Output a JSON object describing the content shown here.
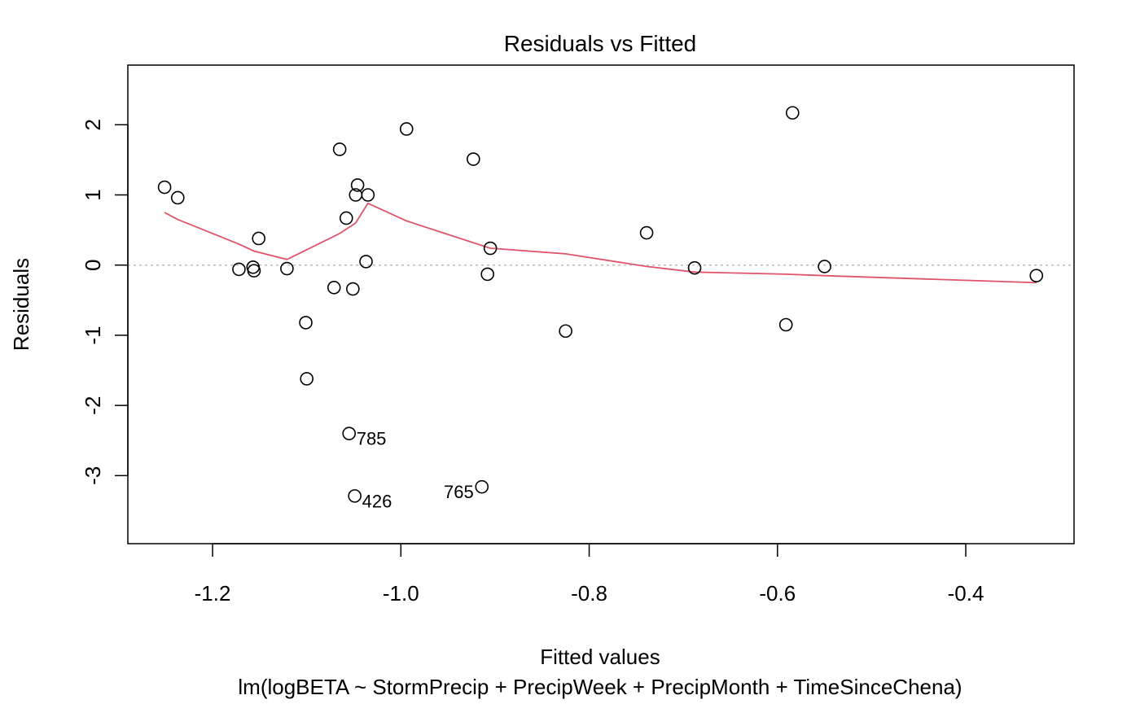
{
  "chart_data": {
    "type": "scatter",
    "title": "Residuals vs Fitted",
    "xlabel": "Fitted values",
    "subtitle": "lm(logBETA ~ StormPrecip + PrecipWeek + PrecipMonth + TimeSinceChena)",
    "ylabel": "Residuals",
    "xlim": [
      -1.29,
      -0.285
    ],
    "ylim": [
      -3.97,
      2.85
    ],
    "x_ticks": [
      -1.2,
      -1.0,
      -0.8,
      -0.6,
      -0.4
    ],
    "x_tick_labels": [
      "-1.2",
      "-1.0",
      "-0.8",
      "-0.6",
      "-0.4"
    ],
    "y_ticks": [
      -3,
      -2,
      -1,
      0,
      1,
      2
    ],
    "y_tick_labels": [
      "-3",
      "-2",
      "-1",
      "0",
      "1",
      "2"
    ],
    "points": [
      {
        "x": -1.251,
        "y": 1.11
      },
      {
        "x": -1.237,
        "y": 0.96
      },
      {
        "x": -1.172,
        "y": -0.06
      },
      {
        "x": -1.157,
        "y": -0.03
      },
      {
        "x": -1.156,
        "y": -0.08
      },
      {
        "x": -1.151,
        "y": 0.38
      },
      {
        "x": -1.121,
        "y": -0.05
      },
      {
        "x": -1.101,
        "y": -0.82
      },
      {
        "x": -1.1,
        "y": -1.62
      },
      {
        "x": -1.071,
        "y": -0.32
      },
      {
        "x": -1.065,
        "y": 1.65
      },
      {
        "x": -1.058,
        "y": 0.67
      },
      {
        "x": -1.055,
        "y": -2.4,
        "label": "785"
      },
      {
        "x": -1.051,
        "y": -0.34
      },
      {
        "x": -1.049,
        "y": -3.29,
        "label": "426"
      },
      {
        "x": -1.048,
        "y": 1.0
      },
      {
        "x": -1.046,
        "y": 1.14
      },
      {
        "x": -1.037,
        "y": 0.05
      },
      {
        "x": -1.035,
        "y": 1.0
      },
      {
        "x": -0.994,
        "y": 1.94
      },
      {
        "x": -0.923,
        "y": 1.51
      },
      {
        "x": -0.914,
        "y": -3.16,
        "label": "765"
      },
      {
        "x": -0.908,
        "y": -0.13
      },
      {
        "x": -0.905,
        "y": 0.24
      },
      {
        "x": -0.825,
        "y": -0.94
      },
      {
        "x": -0.739,
        "y": 0.46
      },
      {
        "x": -0.688,
        "y": -0.04
      },
      {
        "x": -0.591,
        "y": -0.85
      },
      {
        "x": -0.584,
        "y": 2.17
      },
      {
        "x": -0.55,
        "y": -0.02
      },
      {
        "x": -0.325,
        "y": -0.15
      }
    ],
    "smooth_line": {
      "color": "#DF536B",
      "x": [
        -1.251,
        -1.237,
        -1.172,
        -1.156,
        -1.121,
        -1.065,
        -1.048,
        -1.035,
        -0.994,
        -0.905,
        -0.825,
        -0.739,
        -0.688,
        -0.591,
        -0.55,
        -0.325
      ],
      "y": [
        0.75,
        0.65,
        0.3,
        0.2,
        0.08,
        0.45,
        0.6,
        0.88,
        0.63,
        0.24,
        0.16,
        -0.02,
        -0.1,
        -0.13,
        -0.15,
        -0.25
      ]
    },
    "reference_line": {
      "y": 0,
      "style": "dotted",
      "color": "#BEBEBE"
    },
    "grid": false,
    "legend": "none"
  }
}
